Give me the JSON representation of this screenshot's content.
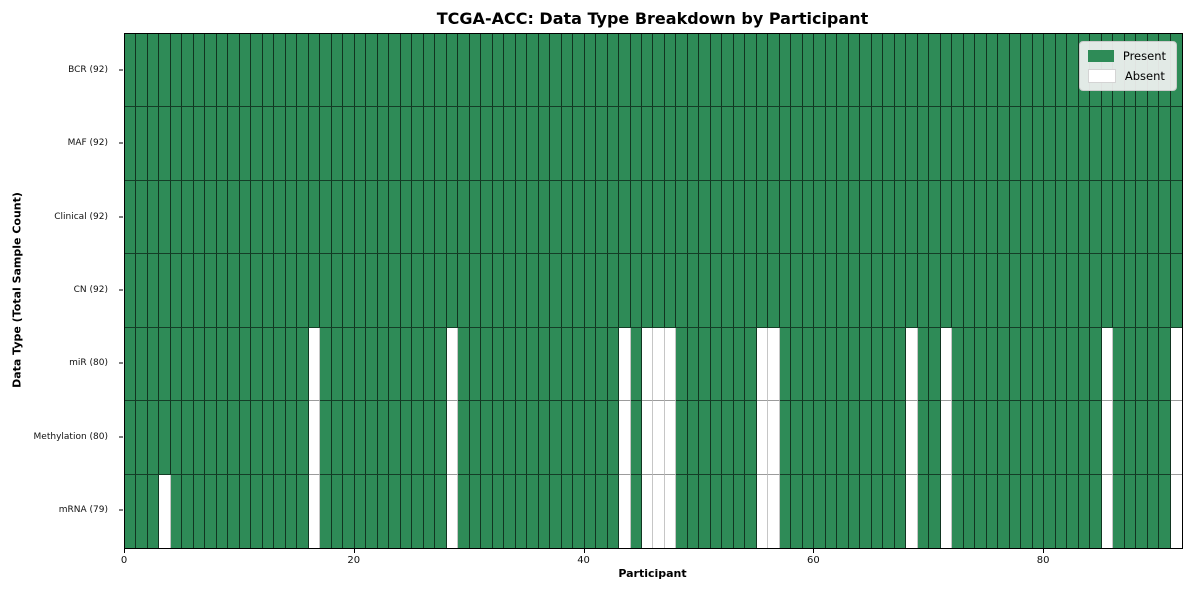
{
  "chart_data": {
    "type": "heatmap",
    "title": "TCGA-ACC: Data Type Breakdown by Participant",
    "xlabel": "Participant",
    "ylabel": "Data Type (Total Sample Count)",
    "n_participants": 92,
    "x_ticks": [
      0,
      20,
      40,
      60,
      80
    ],
    "grid": "cell-borders",
    "legend": {
      "position": "upper-right",
      "present_label": "Present",
      "absent_label": "Absent"
    },
    "colors": {
      "present": "#2e8b57",
      "absent": "#ffffff"
    },
    "rows": [
      {
        "label": "BCR (92)",
        "count": 92,
        "absent_participants": []
      },
      {
        "label": "MAF (92)",
        "count": 92,
        "absent_participants": []
      },
      {
        "label": "Clinical (92)",
        "count": 92,
        "absent_participants": []
      },
      {
        "label": "CN (92)",
        "count": 92,
        "absent_participants": []
      },
      {
        "label": "miR (80)",
        "count": 80,
        "absent_participants": [
          16,
          28,
          43,
          45,
          46,
          47,
          55,
          56,
          68,
          71,
          85,
          91
        ]
      },
      {
        "label": "Methylation (80)",
        "count": 80,
        "absent_participants": [
          16,
          28,
          43,
          45,
          46,
          47,
          55,
          56,
          68,
          71,
          85,
          91
        ]
      },
      {
        "label": "mRNA (79)",
        "count": 79,
        "absent_participants": [
          3,
          16,
          28,
          43,
          45,
          46,
          47,
          55,
          56,
          68,
          71,
          85,
          91
        ]
      }
    ]
  }
}
